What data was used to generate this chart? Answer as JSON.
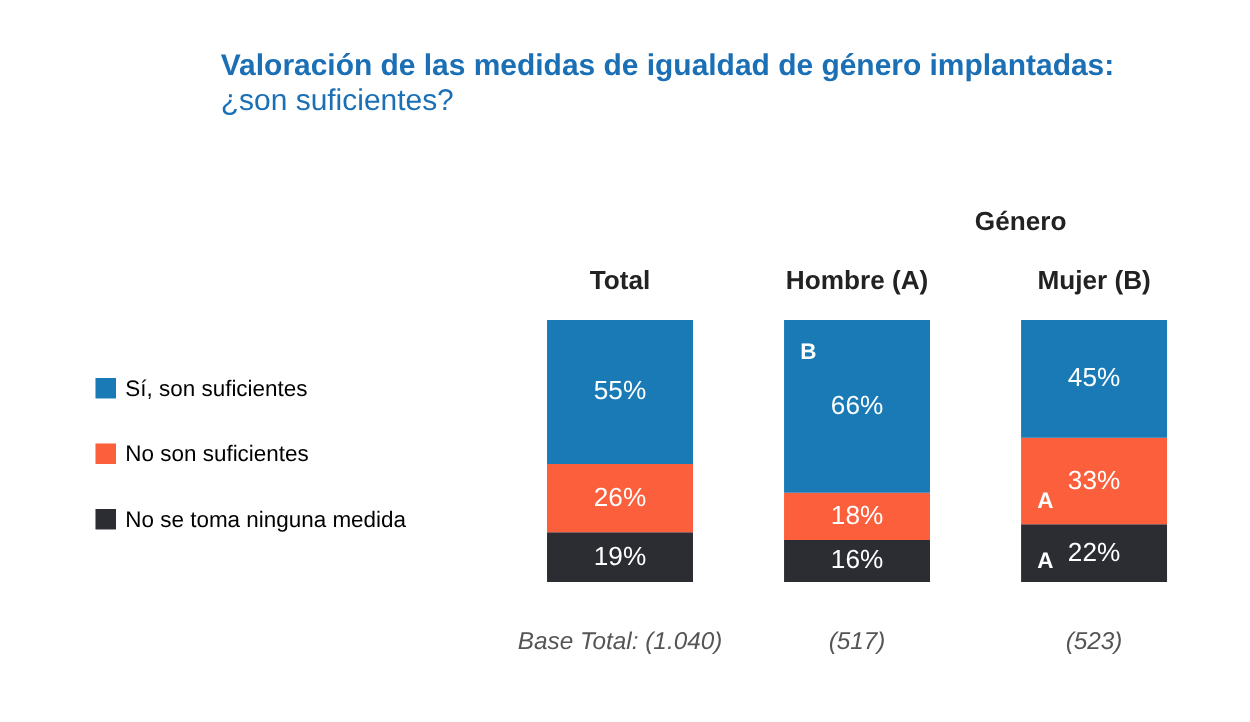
{
  "chart_data": {
    "type": "bar",
    "stacked": true,
    "title": "Valoración de las medidas de igualdad de género implantadas:",
    "subtitle": "¿son suficientes?",
    "categories": [
      "Total",
      "Hombre (A)",
      "Mujer (B)"
    ],
    "series": [
      {
        "name": "No se toma ninguna medida",
        "color": "#2b2d33",
        "values": [
          19,
          16,
          22
        ],
        "value_labels": [
          "19%",
          "16%",
          "22%"
        ]
      },
      {
        "name": "No son suficientes",
        "color": "#fb5f3c",
        "values": [
          26,
          18,
          33
        ],
        "value_labels": [
          "26%",
          "18%",
          "33%"
        ]
      },
      {
        "name": "Sí, son suficientes",
        "color": "#1a7ab6",
        "values": [
          55,
          66,
          45
        ],
        "value_labels": [
          "55%",
          "66%",
          "45%"
        ]
      }
    ],
    "legend": "left",
    "annotations": [
      "Género",
      "Base Total: (1.040)",
      "(517)",
      "(523)",
      "B",
      "A",
      "A"
    ]
  }
}
